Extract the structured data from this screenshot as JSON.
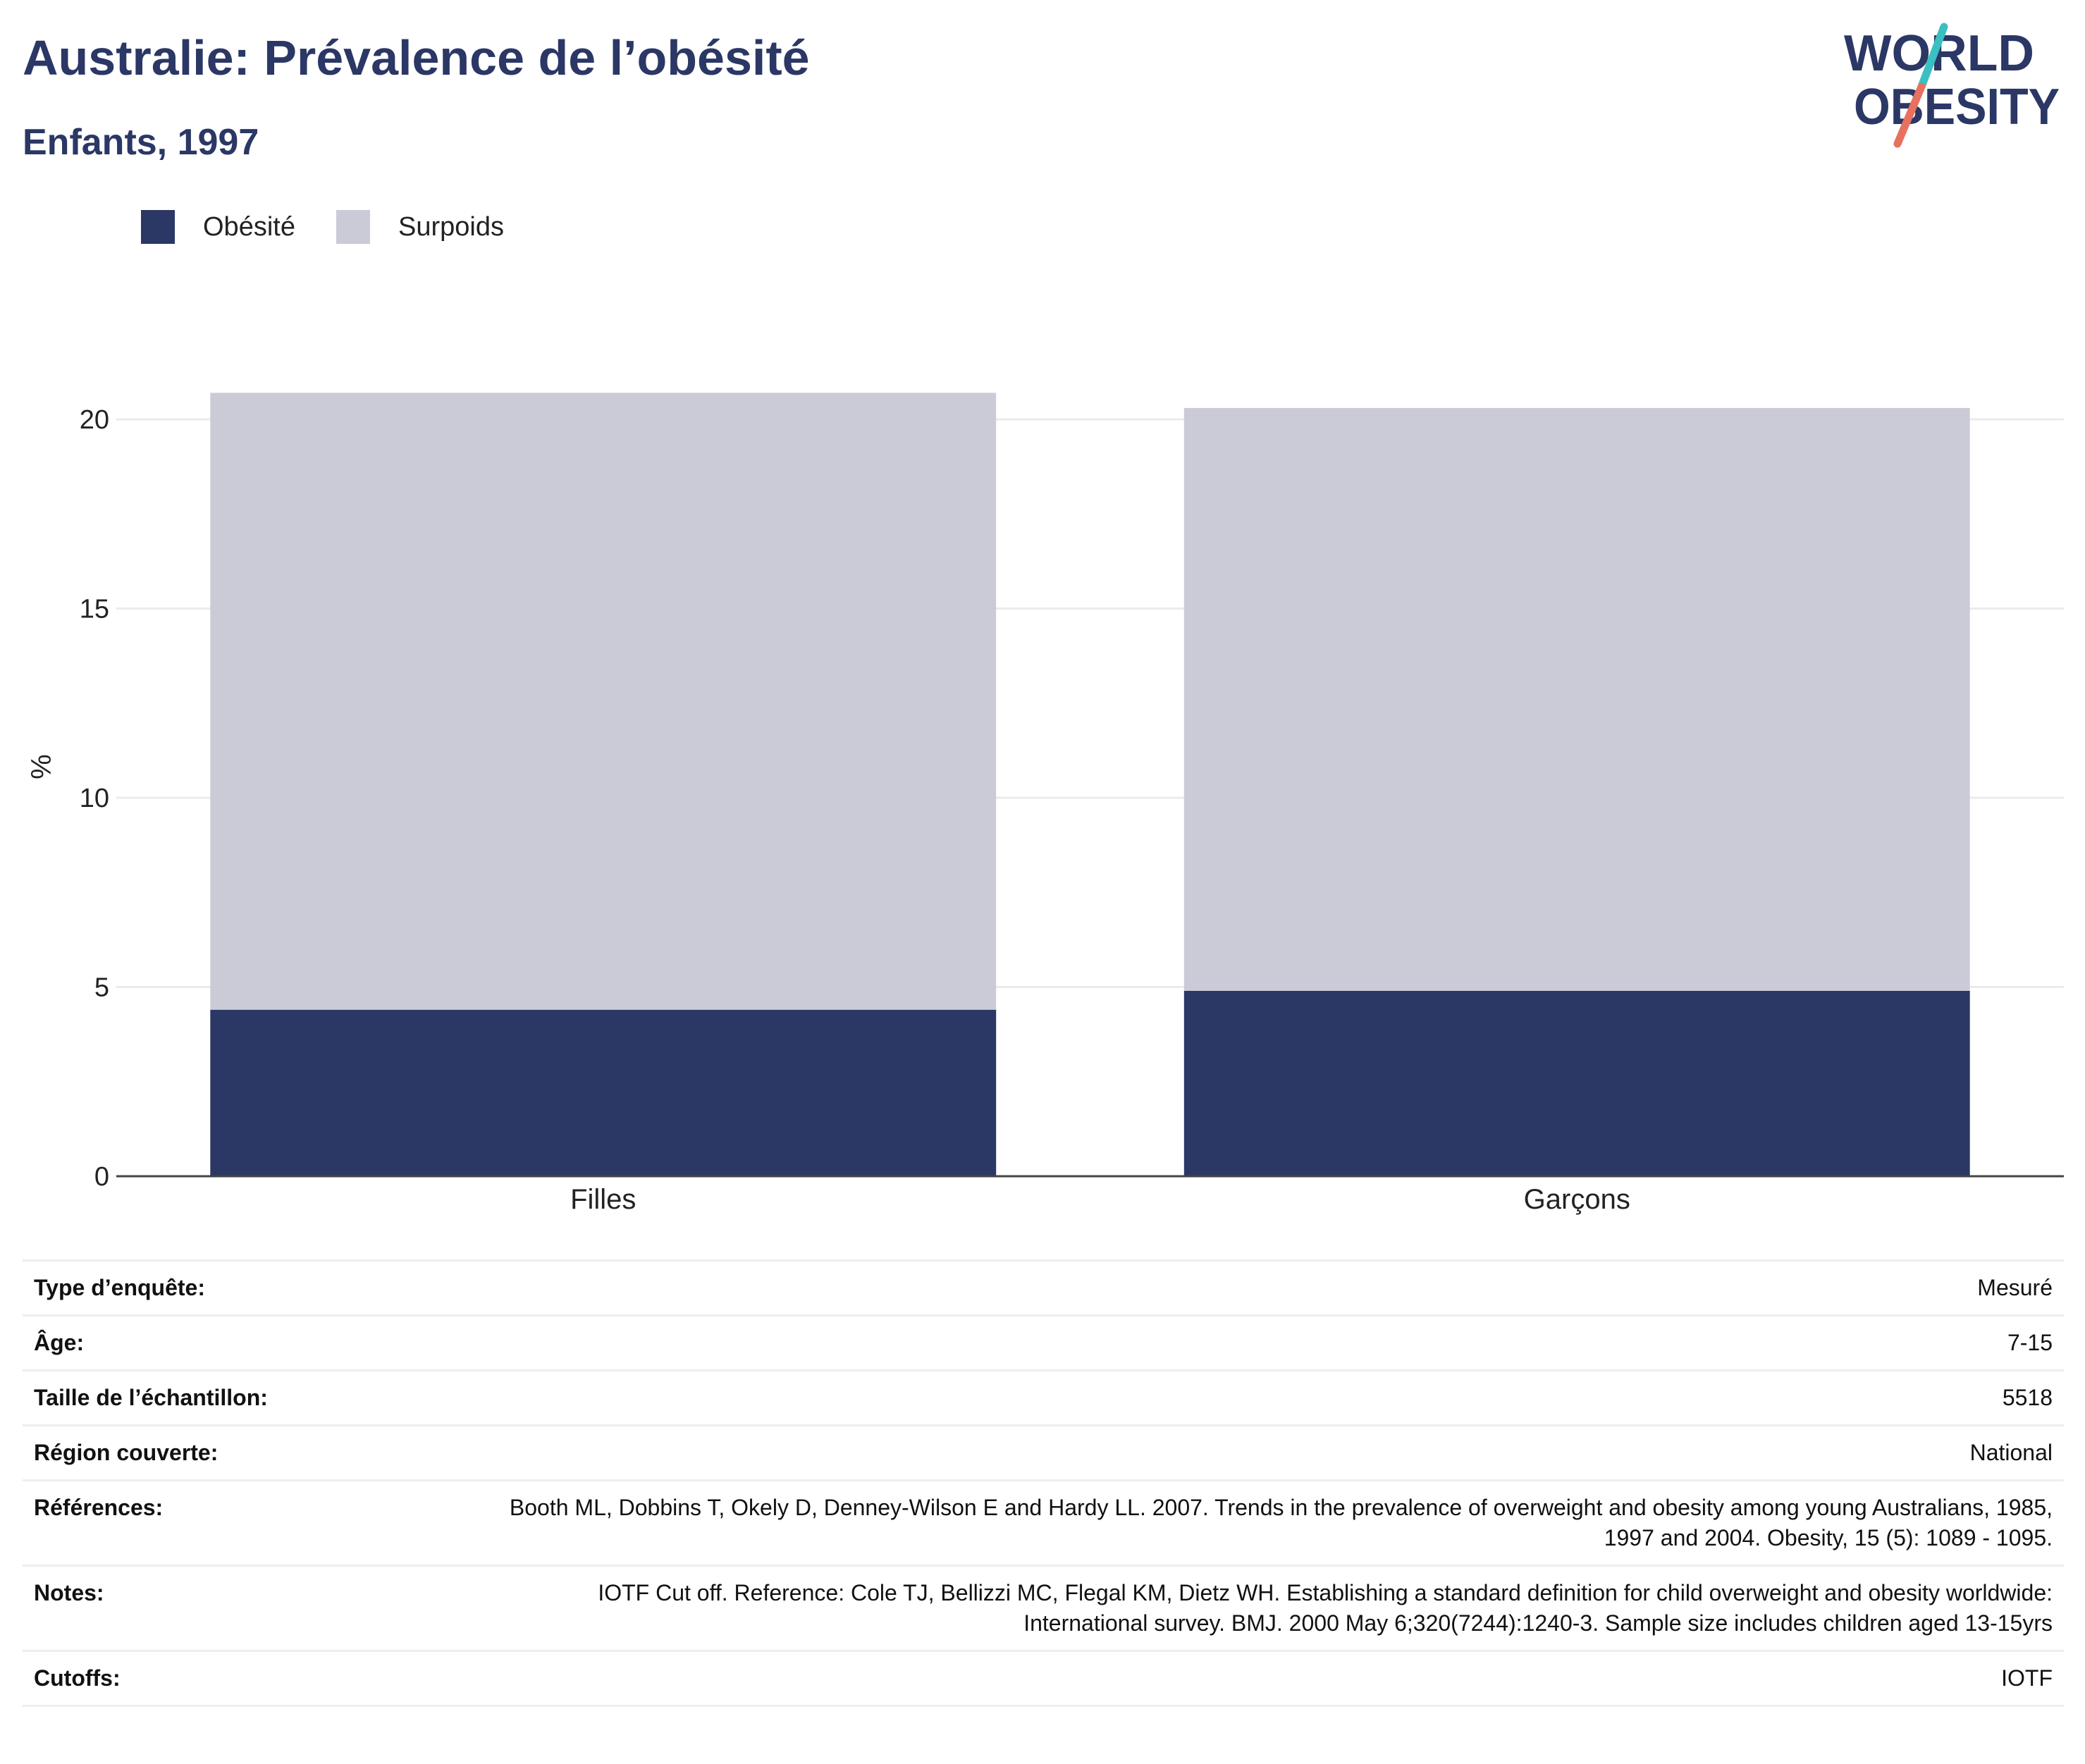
{
  "header": {
    "title": "Australie: Prévalence de l’obésité",
    "subtitle": "Enfants, 1997"
  },
  "logo": {
    "line1": "WORLD",
    "line2": "OBESITY"
  },
  "colors": {
    "obesity": "#2b3765",
    "overweight": "#cacbd7",
    "accent_teal": "#3bbfc1",
    "accent_coral": "#e8705f"
  },
  "chart_data": {
    "type": "bar",
    "stacked": true,
    "categories": [
      "Filles",
      "Garçons"
    ],
    "series": [
      {
        "name": "Obésité",
        "values": [
          4.4,
          4.9
        ],
        "color": "#2b3765"
      },
      {
        "name": "Surpoids",
        "values": [
          16.3,
          15.4
        ],
        "color": "#cacbd7"
      }
    ],
    "ylabel": "%",
    "ylim": [
      0,
      21.3
    ],
    "yticks": [
      0,
      5,
      10,
      15,
      20
    ],
    "grid": true,
    "legend_position": "top-left"
  },
  "meta": {
    "rows": [
      {
        "key": "Type d’enquête:",
        "value": "Mesuré"
      },
      {
        "key": "Âge:",
        "value": "7-15"
      },
      {
        "key": "Taille de l’échantillon:",
        "value": "5518"
      },
      {
        "key": "Région couverte:",
        "value": "National"
      },
      {
        "key": "Références:",
        "value": "Booth ML, Dobbins T, Okely D, Denney-Wilson E and Hardy LL. 2007. Trends in the prevalence of overweight and obesity among young Australians, 1985, 1997 and 2004. Obesity, 15 (5): 1089 - 1095."
      },
      {
        "key": "Notes:",
        "value": "IOTF Cut off. Reference: Cole TJ, Bellizzi MC, Flegal KM, Dietz WH. Establishing a standard definition for child overweight and obesity worldwide: International survey. BMJ. 2000 May 6;320(7244):1240-3. Sample size includes children aged 13-15yrs"
      },
      {
        "key": "Cutoffs:",
        "value": "IOTF"
      }
    ]
  }
}
